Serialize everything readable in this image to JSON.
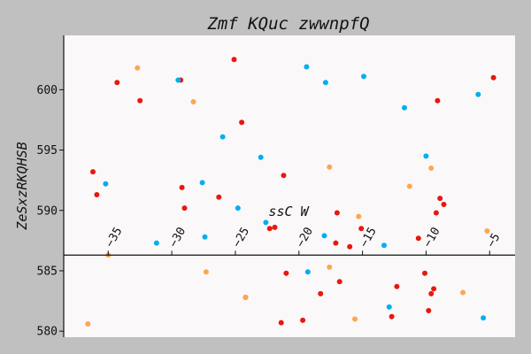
{
  "chart_data": {
    "type": "scatter",
    "title": "Zmf KQuc zwwnpfQ",
    "xlabel": "ssC  W",
    "ylabel": "ZeSxzRKQHSB",
    "xlim": [
      -38.5,
      -3
    ],
    "ylim": [
      579.5,
      604.5
    ],
    "x_axis_position_y": 586.3,
    "x_ticks": [
      -35,
      -30,
      -25,
      -20,
      -15,
      -10,
      -5
    ],
    "y_ticks": [
      580,
      585,
      590,
      595,
      600
    ],
    "grid": false,
    "legend": "none",
    "colors": {
      "red": "#e8170f",
      "orange": "#fea64f",
      "blue": "#04aeef"
    },
    "series": [
      {
        "color": "red",
        "points": [
          [
            -34.3,
            600.6
          ],
          [
            -32.5,
            599.1
          ],
          [
            -29.3,
            600.8
          ],
          [
            -25.1,
            602.5
          ],
          [
            -24.5,
            597.3
          ],
          [
            -36.2,
            593.2
          ],
          [
            -35.9,
            591.3
          ],
          [
            -29.2,
            591.9
          ],
          [
            -29.0,
            590.2
          ],
          [
            -26.3,
            591.1
          ],
          [
            -21.2,
            592.9
          ],
          [
            -21.9,
            588.6
          ],
          [
            -22.3,
            588.5
          ],
          [
            -17.0,
            589.8
          ],
          [
            -17.1,
            587.3
          ],
          [
            -16.0,
            587.0
          ],
          [
            -15.1,
            588.5
          ],
          [
            -10.6,
            587.7
          ],
          [
            -8.9,
            591.0
          ],
          [
            -8.6,
            590.5
          ],
          [
            -9.2,
            589.8
          ],
          [
            -9.1,
            599.1
          ],
          [
            -4.7,
            601.0
          ],
          [
            -21.0,
            584.8
          ],
          [
            -18.3,
            583.1
          ],
          [
            -16.8,
            584.1
          ],
          [
            -12.3,
            583.7
          ],
          [
            -10.1,
            584.8
          ],
          [
            -9.4,
            583.5
          ],
          [
            -9.6,
            583.1
          ],
          [
            -9.8,
            581.7
          ],
          [
            -12.7,
            581.2
          ],
          [
            -19.7,
            580.9
          ],
          [
            -21.4,
            580.7
          ],
          [
            -24.2,
            582.8
          ]
        ]
      },
      {
        "color": "orange",
        "points": [
          [
            -32.7,
            601.8
          ],
          [
            -28.3,
            599.0
          ],
          [
            -17.6,
            593.6
          ],
          [
            -15.3,
            589.5
          ],
          [
            -11.3,
            592.0
          ],
          [
            -9.6,
            593.5
          ],
          [
            -5.2,
            588.3
          ],
          [
            -35.0,
            586.3
          ],
          [
            -27.3,
            584.9
          ],
          [
            -24.2,
            582.8
          ],
          [
            -17.6,
            585.3
          ],
          [
            -15.6,
            581.0
          ],
          [
            -7.1,
            583.2
          ],
          [
            -36.6,
            580.6
          ]
        ]
      },
      {
        "color": "blue",
        "points": [
          [
            -29.5,
            600.8
          ],
          [
            -19.4,
            601.9
          ],
          [
            -17.9,
            600.6
          ],
          [
            -14.9,
            601.1
          ],
          [
            -11.7,
            598.5
          ],
          [
            -5.9,
            599.6
          ],
          [
            -26.0,
            596.1
          ],
          [
            -23.0,
            594.4
          ],
          [
            -10.0,
            594.5
          ],
          [
            -35.2,
            592.2
          ],
          [
            -27.6,
            592.3
          ],
          [
            -24.8,
            590.2
          ],
          [
            -22.6,
            589.0
          ],
          [
            -18.0,
            587.9
          ],
          [
            -13.3,
            587.1
          ],
          [
            -31.2,
            587.3
          ],
          [
            -27.4,
            587.8
          ],
          [
            -19.3,
            584.9
          ],
          [
            -12.9,
            582.0
          ],
          [
            -5.5,
            581.1
          ]
        ]
      }
    ]
  }
}
